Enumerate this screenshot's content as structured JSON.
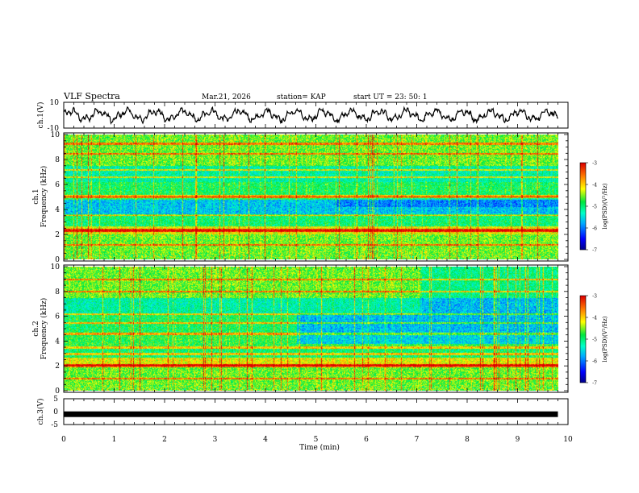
{
  "header": {
    "title": "VLF Spectra",
    "date": "Mar.21, 2026",
    "station": "station= KAP",
    "start": "start  UT =   23: 50: 1"
  },
  "chart_data": [
    {
      "type": "line",
      "name": "ch1-waveform",
      "ylabel": "ch.1(V)",
      "ylim": [
        -10,
        10
      ],
      "yticks": [
        "10",
        "-10"
      ],
      "xlim": [
        0,
        10
      ],
      "description_series": "oscillating voltage trace roughly between -6 and +6 V over 0 to 9.8 min"
    },
    {
      "type": "heatmap",
      "name": "ch1-spectrogram",
      "ylabel": "ch.1",
      "ylabel2": "Frequency (kHz)",
      "ylim": [
        0,
        10
      ],
      "yticks": [
        "0",
        "2",
        "4",
        "6",
        "8",
        "10"
      ],
      "xlim": [
        0,
        10
      ],
      "data_xmax": 9.8,
      "colorbar": {
        "label": "log(PSD)(V²/Hz)",
        "range": [
          -7,
          -3
        ],
        "ticks": [
          "-3",
          "-4",
          "-5",
          "-6",
          "-7"
        ]
      }
    },
    {
      "type": "heatmap",
      "name": "ch2-spectrogram",
      "ylabel": "ch.2",
      "ylabel2": "Frequency (kHz)",
      "ylim": [
        0,
        10
      ],
      "yticks": [
        "0",
        "2",
        "4",
        "6",
        "8",
        "10"
      ],
      "xlim": [
        0,
        10
      ],
      "data_xmax": 9.8,
      "colorbar": {
        "label": "log(PSD)(V²/Hz)",
        "range": [
          -7,
          -3
        ],
        "ticks": [
          "-3",
          "-4",
          "-5",
          "-6",
          "-7"
        ]
      }
    },
    {
      "type": "line",
      "name": "ch3-trace",
      "ylabel": "ch.3(V)",
      "ylim": [
        -5,
        5
      ],
      "yticks": [
        "5",
        "0",
        "-5"
      ],
      "xlim": [
        0,
        10
      ],
      "values_note": "flat at approximately -1 V from 0 to 9.8 min",
      "level": -1
    }
  ],
  "xaxis": {
    "label": "Time  (min)",
    "ticks": [
      "0",
      "1",
      "2",
      "3",
      "4",
      "5",
      "6",
      "7",
      "8",
      "9",
      "10"
    ]
  },
  "colors": {
    "axis": "#000000",
    "trace": "#000000"
  }
}
